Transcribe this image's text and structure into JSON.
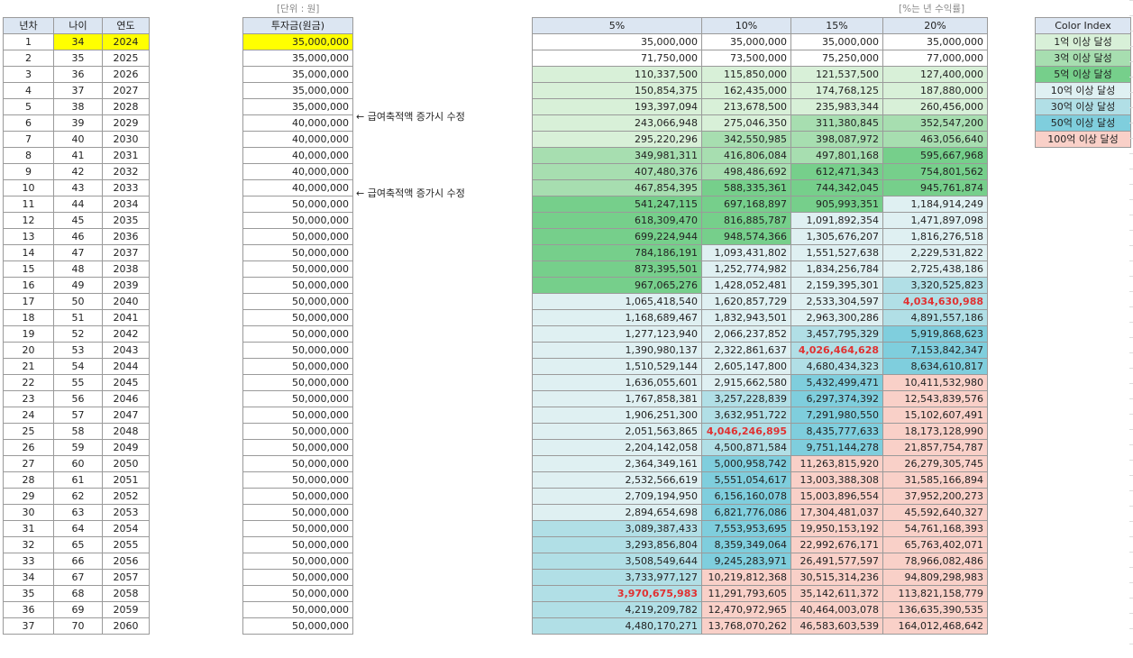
{
  "notes": {
    "unit": "[단위 : 원]",
    "rate": "[%는 년 수익률]",
    "annotation": "← 급여축적액 증가시 수정"
  },
  "main": {
    "headers": [
      "년차",
      "나이",
      "연도"
    ]
  },
  "invest": {
    "header": "투자금(원금)"
  },
  "returns": {
    "headers": [
      "5%",
      "10%",
      "15%",
      "20%"
    ]
  },
  "color_index": {
    "title": "Color Index",
    "items": [
      {
        "label": "1억 이상 달성",
        "color": "#d8f0d8"
      },
      {
        "label": "3억 이상 달성",
        "color": "#a7deb0"
      },
      {
        "label": "5억 이상 달성",
        "color": "#76cf8b"
      },
      {
        "label": "10억 이상 달성",
        "color": "#dff0f2"
      },
      {
        "label": "30억 이상 달성",
        "color": "#b1dfe6"
      },
      {
        "label": "50억 이상 달성",
        "color": "#7fcedd"
      },
      {
        "label": "100억 이상 달성",
        "color": "#f9d0c8"
      }
    ]
  },
  "highlight_row": 1,
  "annotated_rows": [
    6,
    11
  ],
  "red_cells": [
    [
      17,
      3
    ],
    [
      20,
      2
    ],
    [
      25,
      1
    ],
    [
      35,
      0
    ]
  ],
  "rows": [
    [
      "1",
      "34",
      "2024",
      "35,000,000",
      "35,000,000",
      "35,000,000",
      "35,000,000",
      "35,000,000"
    ],
    [
      "2",
      "35",
      "2025",
      "35,000,000",
      "71,750,000",
      "73,500,000",
      "75,250,000",
      "77,000,000"
    ],
    [
      "3",
      "36",
      "2026",
      "35,000,000",
      "110,337,500",
      "115,850,000",
      "121,537,500",
      "127,400,000"
    ],
    [
      "4",
      "37",
      "2027",
      "35,000,000",
      "150,854,375",
      "162,435,000",
      "174,768,125",
      "187,880,000"
    ],
    [
      "5",
      "38",
      "2028",
      "35,000,000",
      "193,397,094",
      "213,678,500",
      "235,983,344",
      "260,456,000"
    ],
    [
      "6",
      "39",
      "2029",
      "40,000,000",
      "243,066,948",
      "275,046,350",
      "311,380,845",
      "352,547,200"
    ],
    [
      "7",
      "40",
      "2030",
      "40,000,000",
      "295,220,296",
      "342,550,985",
      "398,087,972",
      "463,056,640"
    ],
    [
      "8",
      "41",
      "2031",
      "40,000,000",
      "349,981,311",
      "416,806,084",
      "497,801,168",
      "595,667,968"
    ],
    [
      "9",
      "42",
      "2032",
      "40,000,000",
      "407,480,376",
      "498,486,692",
      "612,471,343",
      "754,801,562"
    ],
    [
      "10",
      "43",
      "2033",
      "40,000,000",
      "467,854,395",
      "588,335,361",
      "744,342,045",
      "945,761,874"
    ],
    [
      "11",
      "44",
      "2034",
      "50,000,000",
      "541,247,115",
      "697,168,897",
      "905,993,351",
      "1,184,914,249"
    ],
    [
      "12",
      "45",
      "2035",
      "50,000,000",
      "618,309,470",
      "816,885,787",
      "1,091,892,354",
      "1,471,897,098"
    ],
    [
      "13",
      "46",
      "2036",
      "50,000,000",
      "699,224,944",
      "948,574,366",
      "1,305,676,207",
      "1,816,276,518"
    ],
    [
      "14",
      "47",
      "2037",
      "50,000,000",
      "784,186,191",
      "1,093,431,802",
      "1,551,527,638",
      "2,229,531,822"
    ],
    [
      "15",
      "48",
      "2038",
      "50,000,000",
      "873,395,501",
      "1,252,774,982",
      "1,834,256,784",
      "2,725,438,186"
    ],
    [
      "16",
      "49",
      "2039",
      "50,000,000",
      "967,065,276",
      "1,428,052,481",
      "2,159,395,301",
      "3,320,525,823"
    ],
    [
      "17",
      "50",
      "2040",
      "50,000,000",
      "1,065,418,540",
      "1,620,857,729",
      "2,533,304,597",
      "4,034,630,988"
    ],
    [
      "18",
      "51",
      "2041",
      "50,000,000",
      "1,168,689,467",
      "1,832,943,501",
      "2,963,300,286",
      "4,891,557,186"
    ],
    [
      "19",
      "52",
      "2042",
      "50,000,000",
      "1,277,123,940",
      "2,066,237,852",
      "3,457,795,329",
      "5,919,868,623"
    ],
    [
      "20",
      "53",
      "2043",
      "50,000,000",
      "1,390,980,137",
      "2,322,861,637",
      "4,026,464,628",
      "7,153,842,347"
    ],
    [
      "21",
      "54",
      "2044",
      "50,000,000",
      "1,510,529,144",
      "2,605,147,800",
      "4,680,434,323",
      "8,634,610,817"
    ],
    [
      "22",
      "55",
      "2045",
      "50,000,000",
      "1,636,055,601",
      "2,915,662,580",
      "5,432,499,471",
      "10,411,532,980"
    ],
    [
      "23",
      "56",
      "2046",
      "50,000,000",
      "1,767,858,381",
      "3,257,228,839",
      "6,297,374,392",
      "12,543,839,576"
    ],
    [
      "24",
      "57",
      "2047",
      "50,000,000",
      "1,906,251,300",
      "3,632,951,722",
      "7,291,980,550",
      "15,102,607,491"
    ],
    [
      "25",
      "58",
      "2048",
      "50,000,000",
      "2,051,563,865",
      "4,046,246,895",
      "8,435,777,633",
      "18,173,128,990"
    ],
    [
      "26",
      "59",
      "2049",
      "50,000,000",
      "2,204,142,058",
      "4,500,871,584",
      "9,751,144,278",
      "21,857,754,787"
    ],
    [
      "27",
      "60",
      "2050",
      "50,000,000",
      "2,364,349,161",
      "5,000,958,742",
      "11,263,815,920",
      "26,279,305,745"
    ],
    [
      "28",
      "61",
      "2051",
      "50,000,000",
      "2,532,566,619",
      "5,551,054,617",
      "13,003,388,308",
      "31,585,166,894"
    ],
    [
      "29",
      "62",
      "2052",
      "50,000,000",
      "2,709,194,950",
      "6,156,160,078",
      "15,003,896,554",
      "37,952,200,273"
    ],
    [
      "30",
      "63",
      "2053",
      "50,000,000",
      "2,894,654,698",
      "6,821,776,086",
      "17,304,481,037",
      "45,592,640,327"
    ],
    [
      "31",
      "64",
      "2054",
      "50,000,000",
      "3,089,387,433",
      "7,553,953,695",
      "19,950,153,192",
      "54,761,168,393"
    ],
    [
      "32",
      "65",
      "2055",
      "50,000,000",
      "3,293,856,804",
      "8,359,349,064",
      "22,992,676,171",
      "65,763,402,071"
    ],
    [
      "33",
      "66",
      "2056",
      "50,000,000",
      "3,508,549,644",
      "9,245,283,971",
      "26,491,577,597",
      "78,966,082,486"
    ],
    [
      "34",
      "67",
      "2057",
      "50,000,000",
      "3,733,977,127",
      "10,219,812,368",
      "30,515,314,236",
      "94,809,298,983"
    ],
    [
      "35",
      "68",
      "2058",
      "50,000,000",
      "3,970,675,983",
      "11,291,793,605",
      "35,142,611,372",
      "113,821,158,779"
    ],
    [
      "36",
      "69",
      "2059",
      "50,000,000",
      "4,219,209,782",
      "12,470,972,965",
      "40,464,003,078",
      "136,635,390,535"
    ],
    [
      "37",
      "70",
      "2060",
      "50,000,000",
      "4,480,170,271",
      "13,768,070,262",
      "46,583,603,539",
      "164,012,468,642"
    ]
  ]
}
